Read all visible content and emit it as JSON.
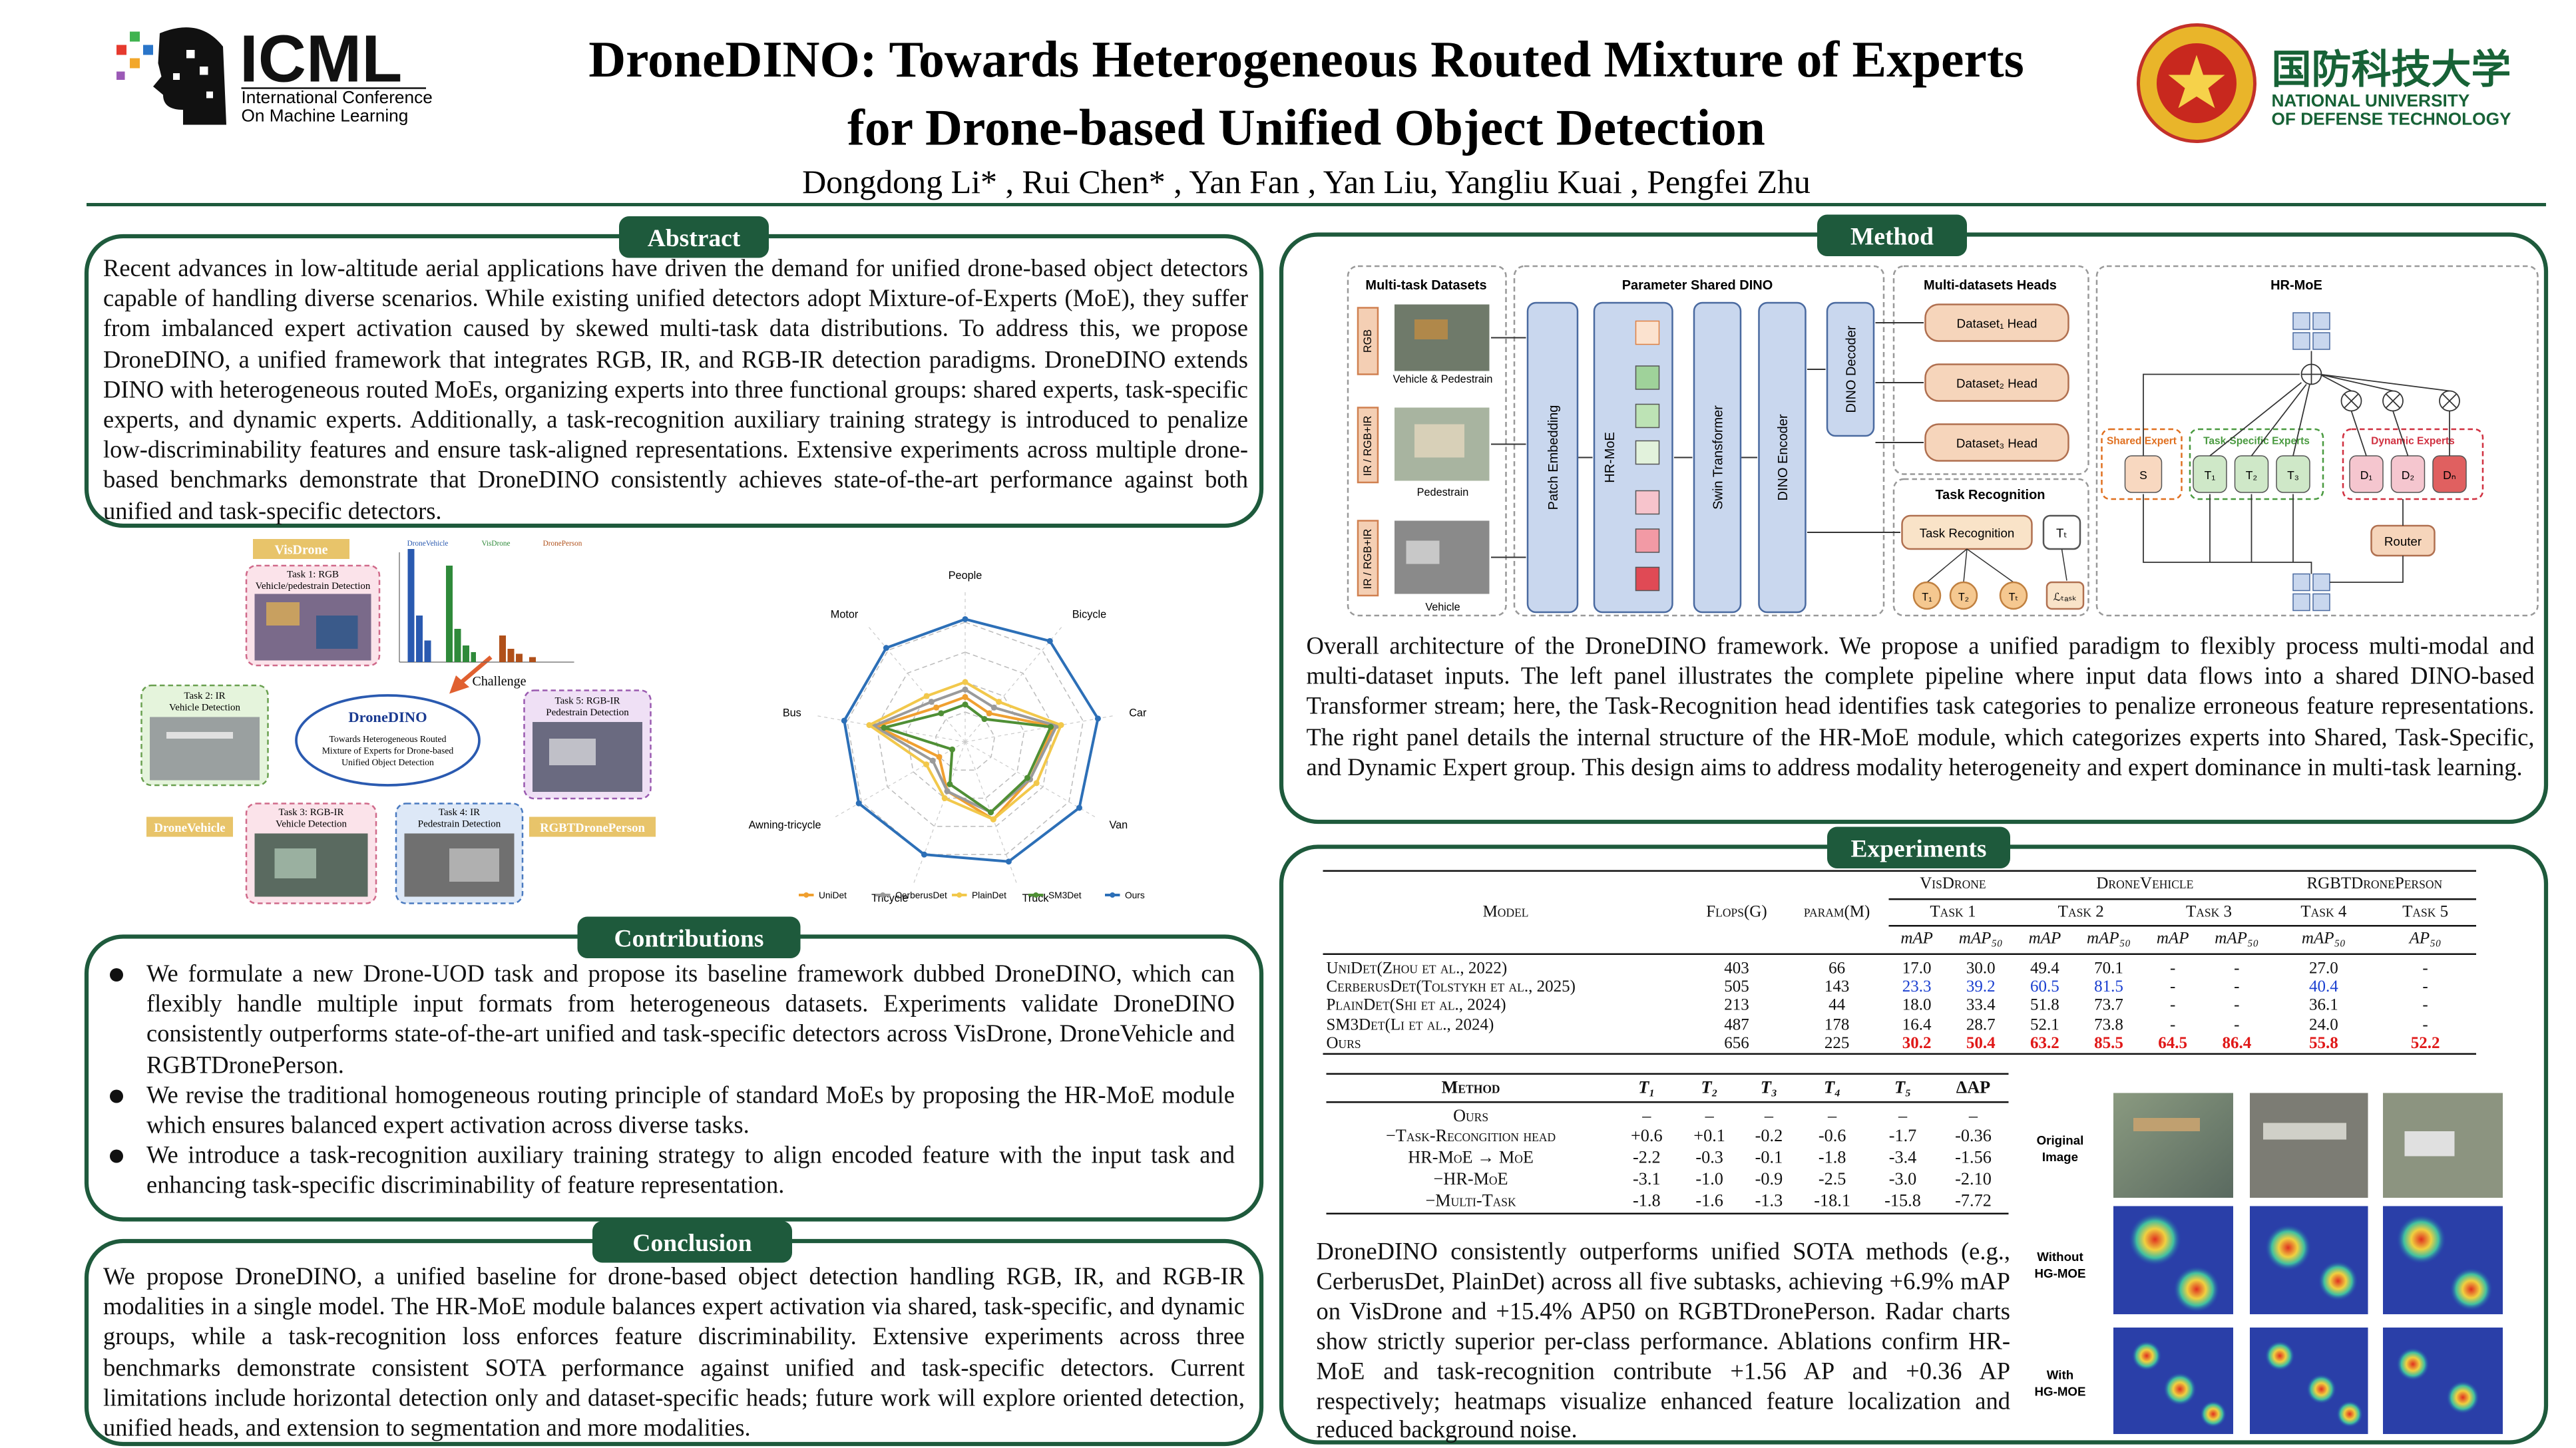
{
  "header": {
    "logo_text": "ICML",
    "logo_sub": [
      "International Conference",
      "On Machine Learning"
    ],
    "title": [
      "DroneDINO: Towards Heterogeneous Routed Mixture of Experts",
      "for Drone-based Unified Object Detection"
    ],
    "authors": "Dongdong Li* , Rui Chen* , Yan Fan , Yan Liu,  Yangliu Kuai , Pengfei Zhu",
    "university_cn": "国防科技大学",
    "university_en": [
      "NATIONAL UNIVERSITY",
      "OF DEFENSE TECHNOLOGY"
    ]
  },
  "abstract": {
    "title": "Abstract",
    "text": "Recent advances in low-altitude aerial applications have driven the demand for unified drone-based object detectors capable of handling diverse scenarios. While existing unified detectors adopt Mixture-of-Experts (MoE), they suffer from imbalanced expert activation caused by skewed multi-task data distributions. To address this, we propose DroneDINO, a unified framework that integrates RGB, IR, and RGB-IR detection paradigms. DroneDINO extends DINO with heterogeneous routed MoEs, organizing experts into three functional groups: shared experts, task-specific experts, and dynamic experts. Additionally, a task-recognition auxiliary training strategy is introduced to penalize low-discriminability features and ensure task-aligned representations. Extensive experiments across multiple drone-based benchmarks demonstrate that DroneDINO consistently achieves state-of-the-art performance against both unified and task-specific detectors."
  },
  "overview": {
    "datasets": [
      "VisDrone",
      "DroneVehicle",
      "RGBTDronePerson"
    ],
    "tasks": [
      [
        "Task 1: RGB",
        "Vehicle/pedestrain Detection"
      ],
      [
        "Task 2: IR",
        "Vehicle Detection"
      ],
      [
        "Task 3: RGB-IR",
        "Vehicle Detection"
      ],
      [
        "Task 4: IR",
        "Pedestrain Detection"
      ],
      [
        "Task 5: RGB-IR",
        "Pedestrain Detection"
      ]
    ],
    "center_title": "DroneDINO",
    "center_subtitle": [
      "Towards Heterogeneous Routed",
      "Mixture of Experts for Drone-based",
      "Unified Object Detection"
    ],
    "challenge": "Challenge",
    "histogram_legend": [
      "DroneVehicle",
      "VisDrone",
      "DronePerson"
    ]
  },
  "chart_data": {
    "type": "radar",
    "categories": [
      "People",
      "Bicycle",
      "Car",
      "Van",
      "Truck",
      "Tricycle",
      "Awning-tricycle",
      "Bus",
      "Motor"
    ],
    "rlim": [
      0,
      1
    ],
    "grid": true,
    "legend": "bottom",
    "series": [
      {
        "name": "UniDet",
        "color": "#f0a030",
        "values": [
          0.3,
          0.25,
          0.6,
          0.5,
          0.55,
          0.35,
          0.2,
          0.6,
          0.3
        ]
      },
      {
        "name": "CerberusDet",
        "color": "#9a9a9a",
        "values": [
          0.35,
          0.3,
          0.62,
          0.5,
          0.5,
          0.35,
          0.25,
          0.62,
          0.35
        ]
      },
      {
        "name": "PlainDet",
        "color": "#f2c84b",
        "values": [
          0.4,
          0.35,
          0.65,
          0.55,
          0.55,
          0.4,
          0.3,
          0.65,
          0.4
        ]
      },
      {
        "name": "SM3Det",
        "color": "#4f8f35",
        "values": [
          0.25,
          0.2,
          0.58,
          0.48,
          0.5,
          0.3,
          0.1,
          0.55,
          0.25
        ]
      },
      {
        "name": "Ours",
        "color": "#2c6fb7",
        "values": [
          0.82,
          0.88,
          0.9,
          0.88,
          0.85,
          0.8,
          0.82,
          0.82,
          0.82
        ]
      }
    ]
  },
  "contributions": {
    "title": "Contributions",
    "items": [
      "We formulate a new Drone-UOD task and propose its baseline framework dubbed DroneDINO, which can flexibly handle multiple input formats from heterogeneous datasets. Experiments validate DroneDINO consistently outperforms state-of-the-art unified and task-specific detectors across VisDrone, DroneVehicle and RGBTDronePerson.",
      "We revise the traditional homogeneous routing principle of standard MoEs by proposing the HR-MoE module which ensures balanced expert activation across diverse tasks.",
      "We introduce a task-recognition auxiliary training strategy to align encoded feature with the input task and enhancing task-specific discriminability of feature representation."
    ]
  },
  "conclusion": {
    "title": "Conclusion",
    "text": "We propose DroneDINO, a unified baseline for drone-based object detection handling RGB, IR, and RGB-IR modalities in a single model. The HR-MoE module balances expert activation via shared, task-specific, and dynamic groups, while a task-recognition loss enforces feature discriminability. Extensive experiments across three benchmarks demonstrate consistent SOTA performance against unified and task-specific detectors. Current limitations include horizontal detection only and dataset-specific heads; future work will explore oriented detection, unified heads, and extension to segmentation and more modalities."
  },
  "method": {
    "title": "Method",
    "caption": "Overall architecture of the DroneDINO framework. We propose a unified paradigm to flexibly process multi-modal and multi-dataset inputs. The left panel illustrates the complete pipeline where input data flows into a shared DINO-based Transformer stream; here, the Task-Recognition head identifies task categories to penalize erroneous feature representations. The right panel details  the internal structure of the HR-MoE module, which categorizes experts into Shared, Task-Specific, and Dynamic Expert group. This design aims to address modality heterogeneity and expert dominance in multi-task learning.",
    "diagram": {
      "panels": [
        "Multi-task Datasets",
        "Parameter Shared DINO",
        "Multi-datasets Heads",
        "Task Recognition",
        "HR-MoE"
      ],
      "modalities": [
        "RGB",
        "IR / RGB+IR",
        "IR / RGB+IR"
      ],
      "samples": [
        "Vehicle & Pedestrain",
        "Pedestrain",
        "Vehicle"
      ],
      "modules": [
        "Patch Embedding",
        "HR-MoE",
        "Swin Transformer",
        "DINO Encoder",
        "DINO Decoder"
      ],
      "heads": [
        "Dataset₁ Head",
        "Dataset₂ Head",
        "Dataset₃ Head"
      ],
      "task_recognition": "Task Recognition",
      "task_token": "Tₜ",
      "task_outputs": [
        "T₁",
        "T₂",
        "Tₜ",
        "ℒₜₐₛₖ"
      ],
      "expert_groups": [
        "Shared Expert",
        "Task-Specific Experts",
        "Dynamic Experts"
      ],
      "experts": [
        "S",
        "T₁",
        "T₂",
        "T₃",
        "D₁",
        "D₂",
        "Dₙ"
      ],
      "router": "Router"
    }
  },
  "experiments": {
    "title": "Experiments",
    "table1": {
      "model": "Model",
      "flops": "Flops(G)",
      "param": "param(M)",
      "datasets": [
        "VisDrone",
        "DroneVehicle",
        "RGBTDronePerson"
      ],
      "tasks": [
        "Task 1",
        "Task 2",
        "Task 3",
        "Task 4",
        "Task 5"
      ],
      "metrics": [
        "mAP",
        "mAP₅₀",
        "mAP",
        "mAP₅₀",
        "mAP",
        "mAP₅₀",
        "mAP₅₀",
        "AP₅₀"
      ],
      "rows": [
        [
          "UniDet(Zhou et al., 2022)",
          "403",
          "66",
          "17.0",
          "30.0",
          "49.4",
          "70.1",
          "-",
          "-",
          "27.0",
          "-"
        ],
        [
          "CerberusDet(Tolstykh et al., 2025)",
          "505",
          "143",
          "23.3",
          "39.2",
          "60.5",
          "81.5",
          "-",
          "-",
          "40.4",
          "-"
        ],
        [
          "PlainDet(Shi et al., 2024)",
          "213",
          "44",
          "18.0",
          "33.4",
          "51.8",
          "73.7",
          "-",
          "-",
          "36.1",
          "-"
        ],
        [
          "SM3Det(Li et al., 2024)",
          "487",
          "178",
          "16.4",
          "28.7",
          "52.1",
          "73.8",
          "-",
          "-",
          "24.0",
          "-"
        ],
        [
          "Ours",
          "656",
          "225",
          "30.2",
          "50.4",
          "63.2",
          "85.5",
          "64.5",
          "86.4",
          "55.8",
          "52.2"
        ]
      ]
    },
    "table2": {
      "header": [
        "Method",
        "T₁",
        "T₂",
        "T₃",
        "T₄",
        "T₅",
        "ΔAP"
      ],
      "rows": [
        [
          "Ours",
          "–",
          "–",
          "–",
          "–",
          "–",
          "–"
        ],
        [
          "−Task-Recongition head",
          "+0.6",
          "+0.1",
          "-0.2",
          "-0.6",
          "-1.7",
          "-0.36"
        ],
        [
          "HR-MoE → MoE",
          "-2.2",
          "-0.3",
          "-0.1",
          "-1.8",
          "-3.4",
          "-1.56"
        ],
        [
          "−HR-MoE",
          "-3.1",
          "-1.0",
          "-0.9",
          "-2.5",
          "-3.0",
          "-2.10"
        ],
        [
          "−Multi-Task",
          "-1.8",
          "-1.6",
          "-1.3",
          "-18.1",
          "-15.8",
          "-7.72"
        ]
      ]
    },
    "heatmap_labels": [
      [
        "Original",
        "Image"
      ],
      [
        "Without",
        "HG-MOE"
      ],
      [
        "With",
        "HG-MOE"
      ]
    ],
    "text": "DroneDINO consistently outperforms unified SOTA methods (e.g., CerberusDet, PlainDet) across all five subtasks, achieving +6.9% mAP on VisDrone and +15.4% AP50 on RGBTDronePerson. Radar charts show strictly superior per-class performance. Ablations confirm HR-MoE and task-recognition contribute +1.56 AP and +0.36 AP respectively; heatmaps visualize enhanced feature localization and reduced background noise."
  }
}
